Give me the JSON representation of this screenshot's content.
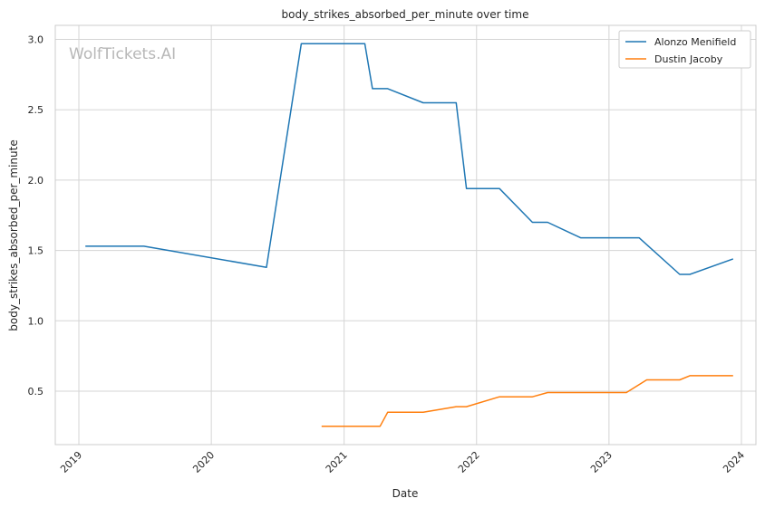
{
  "chart_data": {
    "type": "line",
    "title": "body_strikes_absorbed_per_minute over time",
    "xlabel": "Date",
    "ylabel": "body_strikes_absorbed_per_minute",
    "watermark": "WolfTickets.AI",
    "x_ticks": [
      "2019",
      "2020",
      "2021",
      "2022",
      "2023",
      "2024"
    ],
    "y_ticks": [
      "0.5",
      "1.0",
      "1.5",
      "2.0",
      "2.5",
      "3.0"
    ],
    "xlim": [
      "2018-10-28",
      "2024-02-10"
    ],
    "ylim": [
      0.12,
      3.1
    ],
    "grid": true,
    "legend_position": "top-right",
    "series": [
      {
        "name": "Alonzo Menifield",
        "color": "#1f77b4",
        "points": [
          [
            "2019-01-19",
            1.53
          ],
          [
            "2019-06-29",
            1.53
          ],
          [
            "2020-06-01",
            1.38
          ],
          [
            "2020-09-05",
            2.97
          ],
          [
            "2021-02-27",
            2.97
          ],
          [
            "2021-03-20",
            2.65
          ],
          [
            "2021-05-01",
            2.65
          ],
          [
            "2021-08-07",
            2.55
          ],
          [
            "2021-11-06",
            2.55
          ],
          [
            "2021-12-04",
            1.94
          ],
          [
            "2022-03-05",
            1.94
          ],
          [
            "2022-06-04",
            1.7
          ],
          [
            "2022-07-16",
            1.7
          ],
          [
            "2022-10-15",
            1.59
          ],
          [
            "2023-01-21",
            1.59
          ],
          [
            "2023-03-25",
            1.59
          ],
          [
            "2023-07-15",
            1.33
          ],
          [
            "2023-08-12",
            1.33
          ],
          [
            "2023-12-09",
            1.44
          ]
        ]
      },
      {
        "name": "Dustin Jacoby",
        "color": "#ff7f0e",
        "points": [
          [
            "2020-10-31",
            0.25
          ],
          [
            "2021-04-10",
            0.25
          ],
          [
            "2021-05-01",
            0.35
          ],
          [
            "2021-08-07",
            0.35
          ],
          [
            "2021-11-06",
            0.39
          ],
          [
            "2021-12-04",
            0.39
          ],
          [
            "2022-03-05",
            0.46
          ],
          [
            "2022-06-04",
            0.46
          ],
          [
            "2022-07-16",
            0.49
          ],
          [
            "2022-10-15",
            0.49
          ],
          [
            "2022-11-05",
            0.49
          ],
          [
            "2023-02-18",
            0.49
          ],
          [
            "2023-04-15",
            0.58
          ],
          [
            "2023-07-15",
            0.58
          ],
          [
            "2023-08-12",
            0.61
          ],
          [
            "2023-12-09",
            0.61
          ]
        ]
      }
    ]
  }
}
